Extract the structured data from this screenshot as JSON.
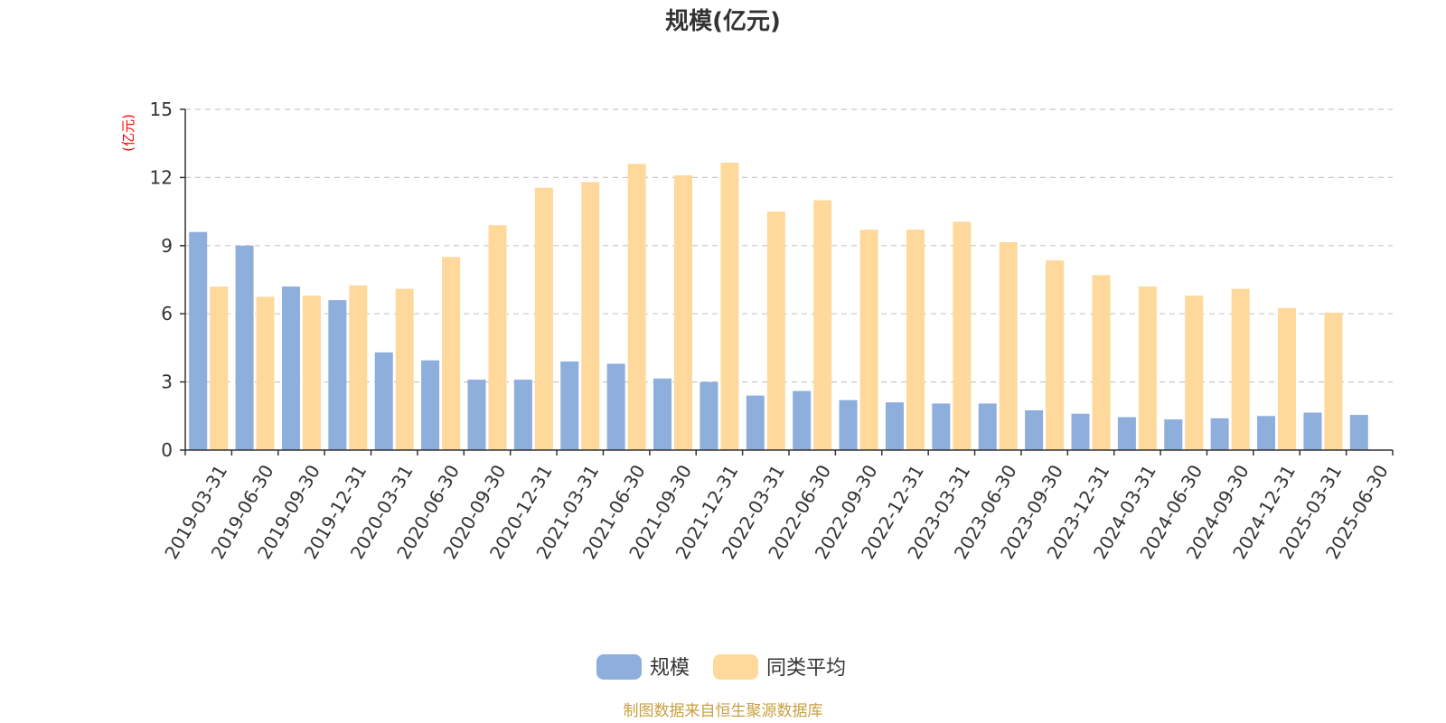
{
  "chart_data": {
    "type": "bar",
    "title": "规模(亿元)",
    "ylabel": "(亿元)",
    "xlabel": "",
    "ylim": [
      0,
      15
    ],
    "yticks": [
      0,
      3,
      6,
      9,
      12,
      15
    ],
    "grid": true,
    "legend_position": "bottom",
    "categories": [
      "2019-03-31",
      "2019-06-30",
      "2019-09-30",
      "2019-12-31",
      "2020-03-31",
      "2020-06-30",
      "2020-09-30",
      "2020-12-31",
      "2021-03-31",
      "2021-06-30",
      "2021-09-30",
      "2021-12-31",
      "2022-03-31",
      "2022-06-30",
      "2022-09-30",
      "2022-12-31",
      "2023-03-31",
      "2023-06-30",
      "2023-09-30",
      "2023-12-31",
      "2024-03-31",
      "2024-06-30",
      "2024-09-30",
      "2024-12-31",
      "2025-03-31",
      "2025-06-30"
    ],
    "series": [
      {
        "name": "规模",
        "color": "#8eaedb",
        "values": [
          9.6,
          9.0,
          7.2,
          6.6,
          4.3,
          3.95,
          3.1,
          3.1,
          3.9,
          3.8,
          3.15,
          3.0,
          2.4,
          2.6,
          2.2,
          2.1,
          2.05,
          2.05,
          1.75,
          1.6,
          1.45,
          1.35,
          1.4,
          1.5,
          1.65,
          1.55
        ]
      },
      {
        "name": "同类平均",
        "color": "#fed99b",
        "values": [
          7.2,
          6.75,
          6.8,
          7.25,
          7.1,
          8.5,
          9.9,
          11.55,
          11.8,
          12.6,
          12.1,
          12.65,
          10.5,
          11.0,
          9.7,
          9.7,
          10.05,
          9.15,
          8.35,
          7.7,
          7.2,
          6.8,
          7.1,
          6.25,
          6.05,
          null
        ]
      }
    ]
  },
  "footer": {
    "source": "制图数据来自恒生聚源数据库"
  }
}
